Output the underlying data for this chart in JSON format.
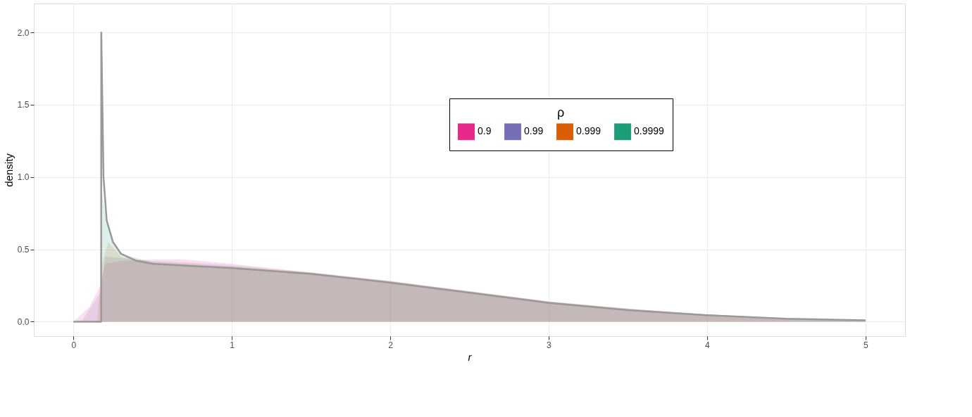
{
  "chart_data": {
    "type": "area",
    "xlabel": "r",
    "ylabel": "density",
    "legend_title": "ρ",
    "legend": "top right",
    "grid": true,
    "xlim": [
      -0.25,
      5.25
    ],
    "xticks": [
      0,
      1,
      2,
      3,
      4,
      5
    ],
    "ylim": [
      -0.1,
      2.2
    ],
    "yticks": [
      {
        "value": 0,
        "label": "0.0"
      },
      0.5,
      {
        "value": 1,
        "label": "1.0"
      },
      1.5,
      {
        "value": 2,
        "label": "2.0"
      }
    ],
    "series": [
      {
        "name": "0.9",
        "color": "#e7298a",
        "x": [
          0,
          0.1,
          0.17,
          0.2,
          0.3,
          0.5,
          0.7,
          1,
          1.5,
          2,
          2.5,
          3,
          3.5,
          4,
          4.5,
          5
        ],
        "values": [
          0,
          0.1,
          0.25,
          0.4,
          0.42,
          0.43,
          0.43,
          0.4,
          0.34,
          0.28,
          0.21,
          0.14,
          0.09,
          0.05,
          0.02,
          0.01
        ]
      },
      {
        "name": "0.99",
        "color": "#7570b3",
        "x": [
          0.05,
          0.17,
          0.2,
          0.3,
          0.5,
          0.7,
          1,
          1.5,
          2,
          2.5,
          3,
          3.5,
          4,
          4.5,
          5
        ],
        "values": [
          0,
          0.2,
          0.45,
          0.44,
          0.42,
          0.41,
          0.39,
          0.34,
          0.28,
          0.21,
          0.14,
          0.09,
          0.05,
          0.02,
          0.01
        ]
      },
      {
        "name": "0.999",
        "color": "#d95f02",
        "x": [
          0.15,
          0.18,
          0.22,
          0.3,
          0.5,
          0.7,
          1,
          1.5,
          2,
          2.5,
          3,
          3.5,
          4,
          4.5,
          5
        ],
        "values": [
          0,
          0.4,
          0.55,
          0.45,
          0.41,
          0.4,
          0.38,
          0.34,
          0.28,
          0.21,
          0.14,
          0.09,
          0.05,
          0.02,
          0.01
        ]
      },
      {
        "name": "0.9999",
        "color": "#1b9e77",
        "x": [
          0.175,
          0.18,
          0.2,
          0.25,
          0.3,
          0.5,
          0.7,
          1,
          1.5,
          2,
          2.5,
          3,
          3.5,
          4,
          4.5,
          5
        ],
        "values": [
          0,
          0.9,
          0.75,
          0.55,
          0.47,
          0.41,
          0.39,
          0.38,
          0.33,
          0.27,
          0.2,
          0.13,
          0.08,
          0.045,
          0.02,
          0.01
        ]
      },
      {
        "type": "line",
        "color": "#999999",
        "x": [
          0,
          0.175,
          0.176,
          0.19,
          0.21,
          0.25,
          0.3,
          0.4,
          0.5,
          1,
          1.5,
          2,
          2.5,
          3,
          3.5,
          4,
          4.5,
          5
        ],
        "values": [
          0,
          0,
          2.0,
          1.0,
          0.7,
          0.55,
          0.47,
          0.42,
          0.4,
          0.37,
          0.33,
          0.27,
          0.2,
          0.13,
          0.08,
          0.045,
          0.02,
          0.01
        ]
      }
    ]
  }
}
